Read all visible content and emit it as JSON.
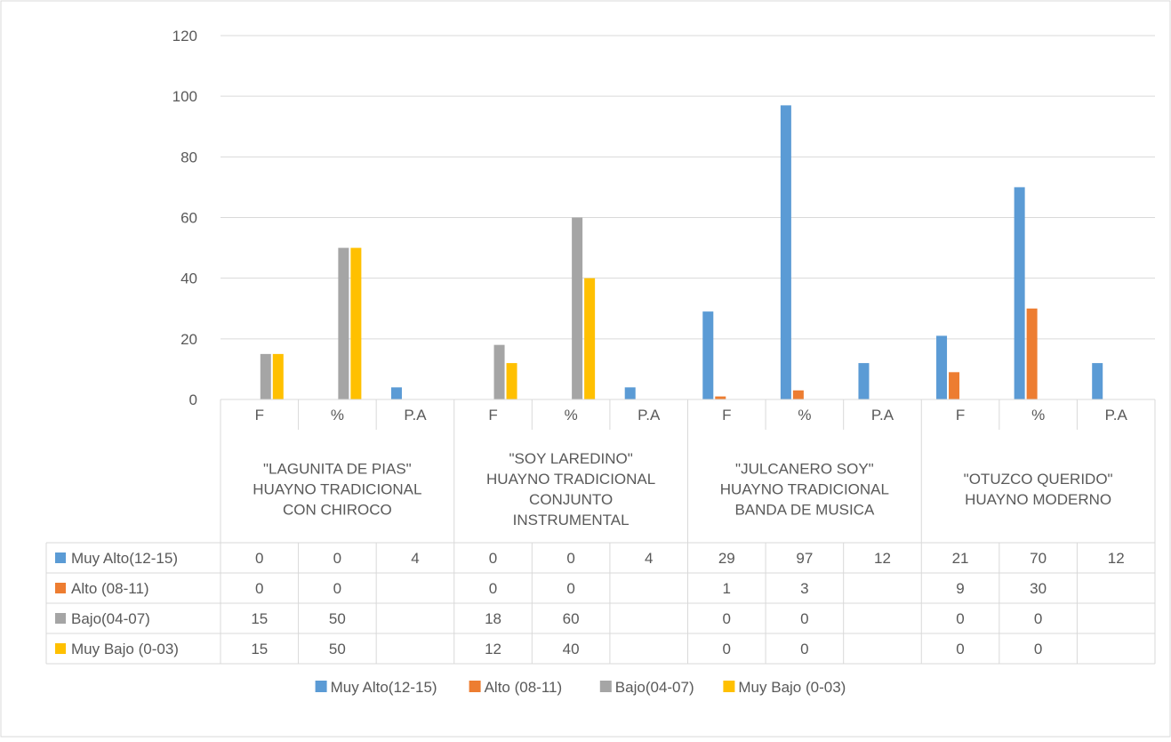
{
  "chart_data": {
    "type": "bar",
    "title": "",
    "xlabel": "",
    "ylabel": "",
    "ylim": [
      0,
      120
    ],
    "yticks": [
      0,
      20,
      40,
      60,
      80,
      100,
      120
    ],
    "grid": true,
    "legend_position": "bottom",
    "groups": [
      {
        "lines": [
          "\"LAGUNITA DE PIAS\"",
          "HUAYNO TRADICIONAL",
          "CON CHIROCO"
        ],
        "subcategories": [
          "F",
          "%",
          "P.A"
        ]
      },
      {
        "lines": [
          "\"SOY LAREDINO\"",
          "HUAYNO TRADICIONAL",
          "CONJUNTO",
          "INSTRUMENTAL"
        ],
        "subcategories": [
          "F",
          "%",
          "P.A"
        ]
      },
      {
        "lines": [
          "\"JULCANERO SOY\"",
          "HUAYNO TRADICIONAL",
          "BANDA DE MUSICA"
        ],
        "subcategories": [
          "F",
          "%",
          "P.A"
        ]
      },
      {
        "lines": [
          "\"OTUZCO QUERIDO\"",
          "HUAYNO MODERNO"
        ],
        "subcategories": [
          "F",
          "%",
          "P.A"
        ]
      }
    ],
    "series": [
      {
        "name": "Muy Alto(12-15)",
        "color": "#5B9BD5",
        "values": [
          0,
          0,
          4,
          0,
          0,
          4,
          29,
          97,
          12,
          21,
          70,
          12
        ],
        "labels": [
          "0",
          "0",
          "4",
          "0",
          "0",
          "4",
          "29",
          "97",
          "12",
          "21",
          "70",
          "12"
        ]
      },
      {
        "name": "Alto (08-11)",
        "color": "#ED7D31",
        "values": [
          0,
          0,
          null,
          0,
          0,
          null,
          1,
          3,
          null,
          9,
          30,
          null
        ],
        "labels": [
          "0",
          "0",
          "",
          "0",
          "0",
          "",
          "1",
          "3",
          "",
          "9",
          "30",
          ""
        ]
      },
      {
        "name": "Bajo(04-07)",
        "color": "#A5A5A5",
        "values": [
          15,
          50,
          null,
          18,
          60,
          null,
          0,
          0,
          null,
          0,
          0,
          null
        ],
        "labels": [
          "15",
          "50",
          "",
          "18",
          "60",
          "",
          "0",
          "0",
          "",
          "0",
          "0",
          ""
        ]
      },
      {
        "name": "Muy Bajo (0-03)",
        "color": "#FFC000",
        "values": [
          15,
          50,
          null,
          12,
          40,
          null,
          0,
          0,
          null,
          0,
          0,
          null
        ],
        "labels": [
          "15",
          "50",
          "",
          "12",
          "40",
          "",
          "0",
          "0",
          "",
          "0",
          "0",
          ""
        ]
      }
    ]
  }
}
